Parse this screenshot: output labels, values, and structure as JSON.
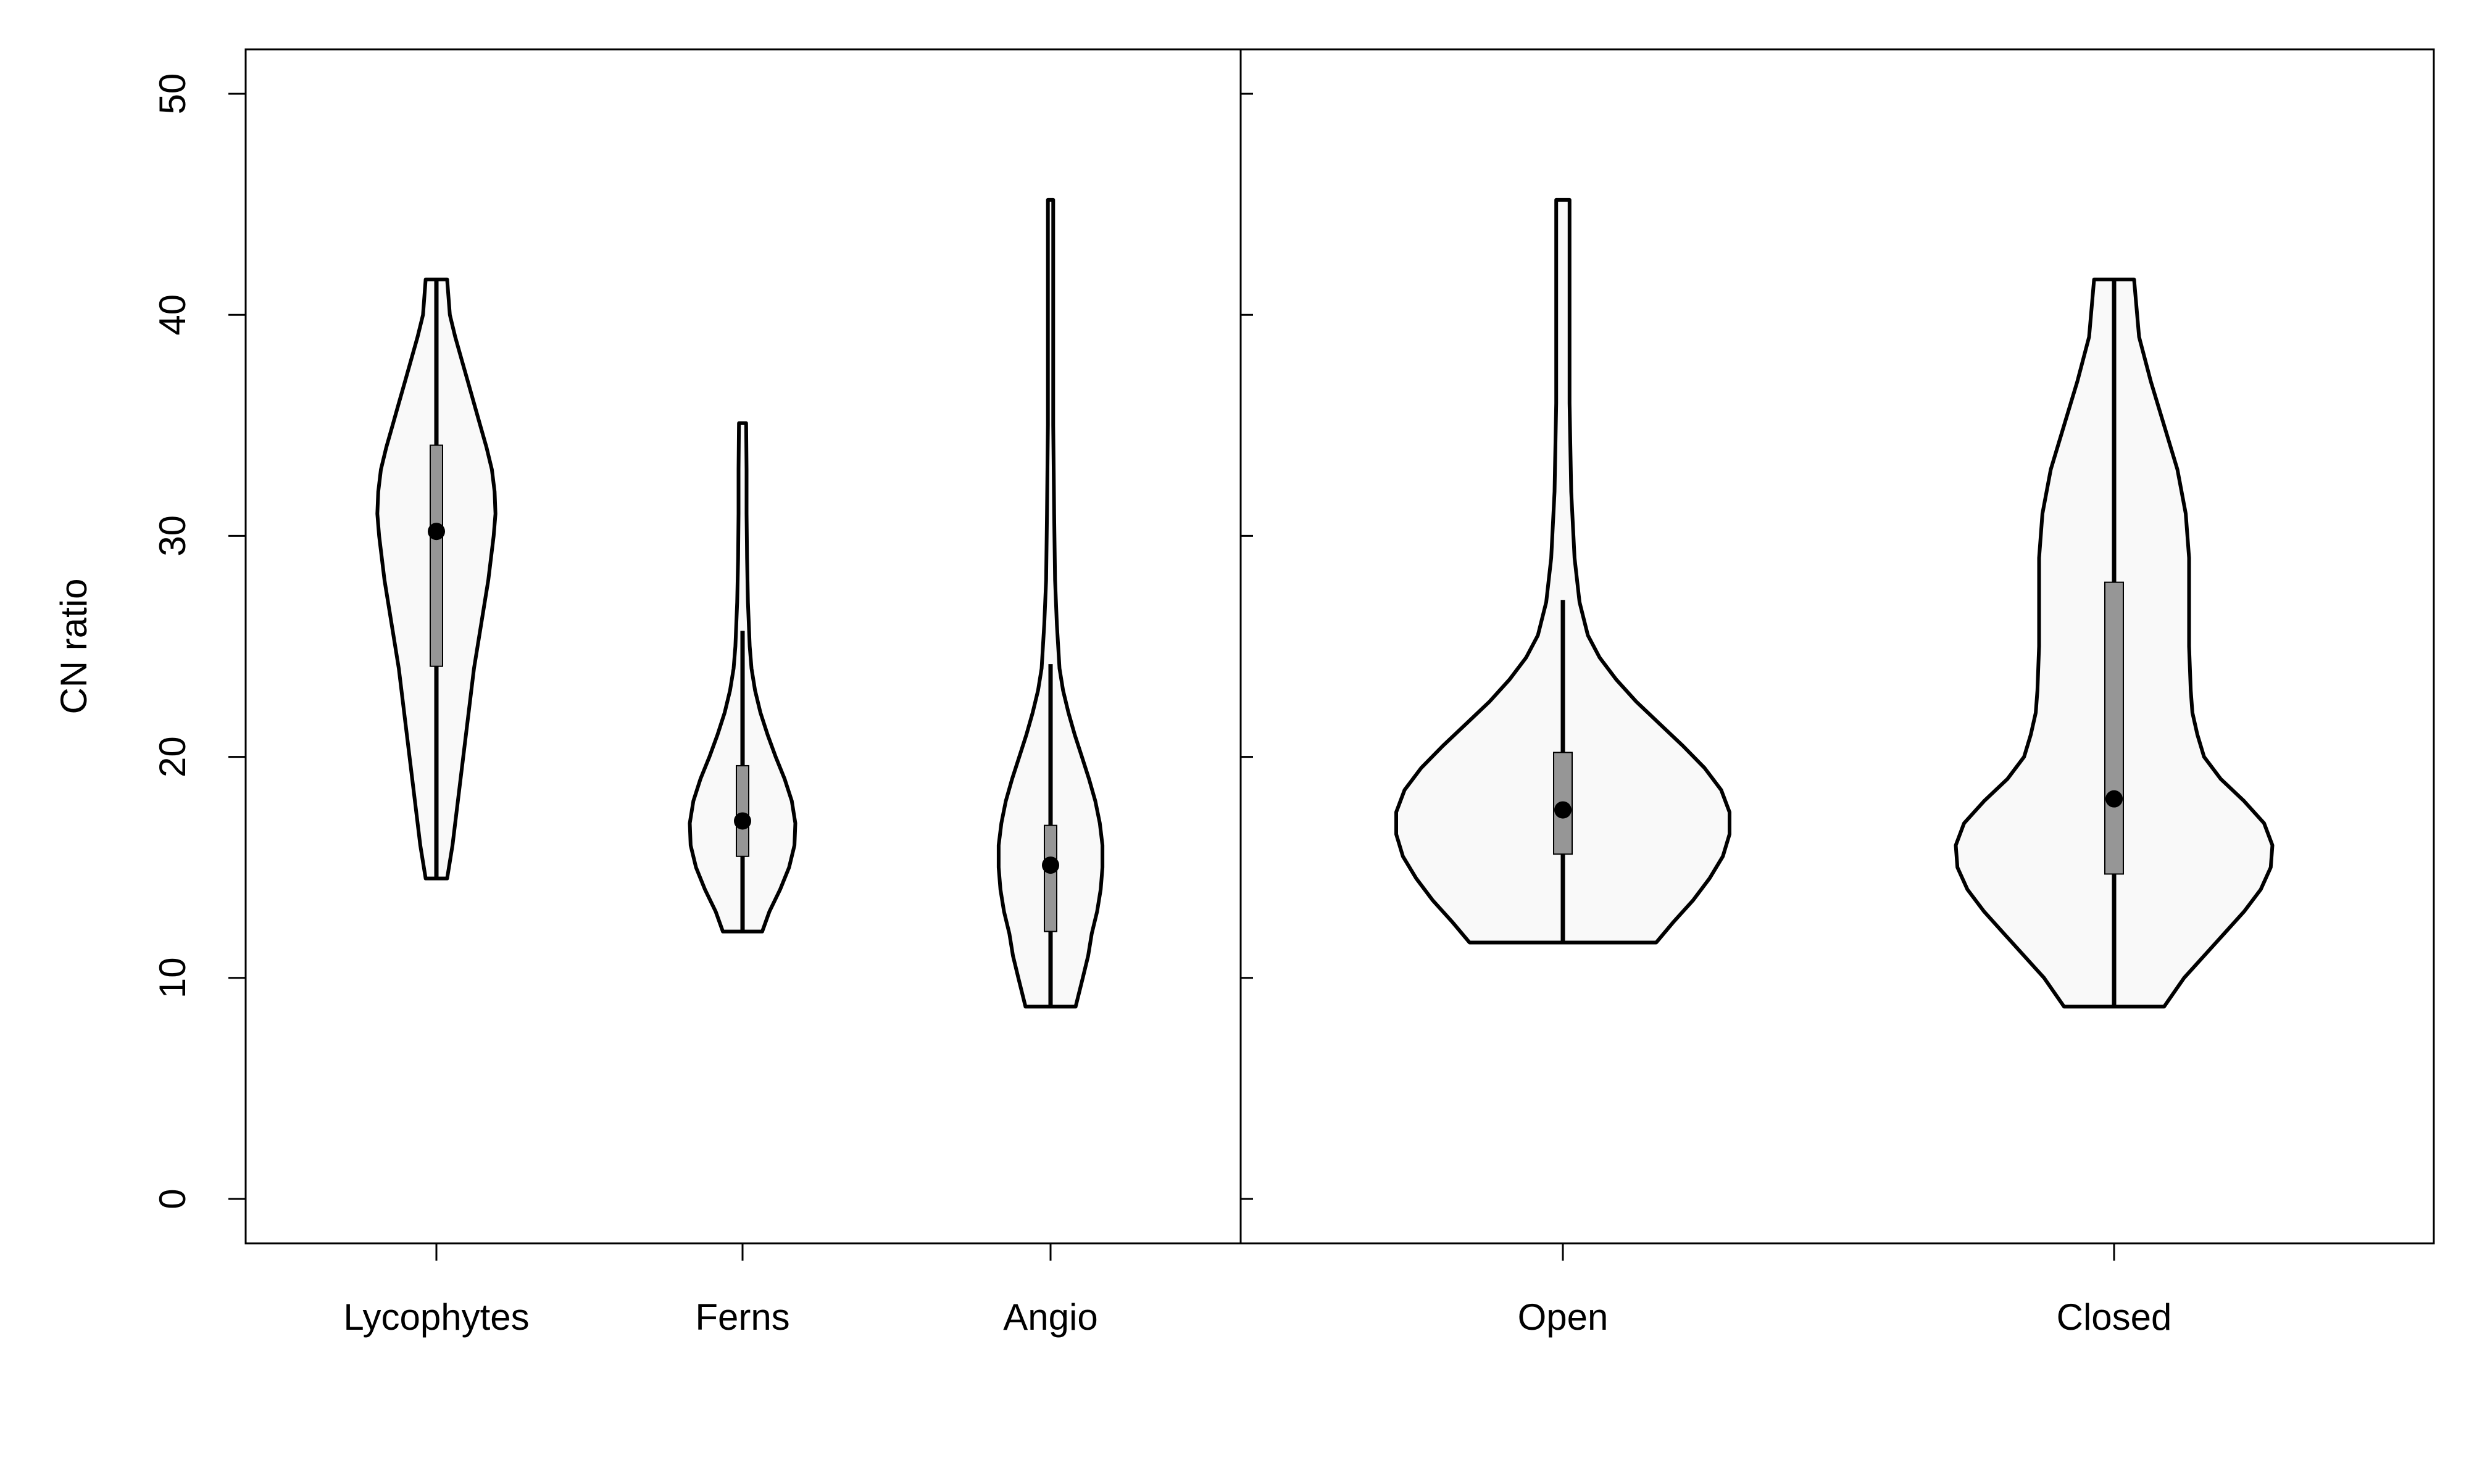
{
  "chart_data": {
    "type": "violin",
    "ylabel": "CN ratio",
    "ylim": [
      -2,
      52
    ],
    "yticks": [
      0,
      10,
      20,
      30,
      40,
      50
    ],
    "grid": false,
    "colors": {
      "violin_fill": "#f9f9f9",
      "box_fill": "#969696",
      "outline": "#000000"
    },
    "panels": [
      {
        "name": "left-panel",
        "groups": [
          {
            "label": "Lycophytes",
            "min": 14.5,
            "max": 41.6,
            "q1": 24.1,
            "median": 30.2,
            "q3": 34.1,
            "whisker_low": 14.5,
            "whisker_high": 41.6,
            "density": [
              [
                14.5,
                0.12
              ],
              [
                16,
                0.18
              ],
              [
                18,
                0.24
              ],
              [
                20,
                0.3
              ],
              [
                22,
                0.36
              ],
              [
                24,
                0.42
              ],
              [
                26,
                0.5
              ],
              [
                28,
                0.58
              ],
              [
                30,
                0.64
              ],
              [
                31,
                0.66
              ],
              [
                32,
                0.65
              ],
              [
                33,
                0.62
              ],
              [
                34,
                0.56
              ],
              [
                35,
                0.49
              ],
              [
                36,
                0.42
              ],
              [
                37,
                0.35
              ],
              [
                38,
                0.28
              ],
              [
                39,
                0.21
              ],
              [
                40,
                0.15
              ],
              [
                41.6,
                0.12
              ]
            ]
          },
          {
            "label": "Ferns",
            "min": 12.1,
            "max": 35.1,
            "q1": 15.5,
            "median": 17.1,
            "q3": 19.6,
            "whisker_low": 12.1,
            "whisker_high": 25.7,
            "density": [
              [
                12.1,
                0.22
              ],
              [
                13,
                0.3
              ],
              [
                14,
                0.42
              ],
              [
                15,
                0.52
              ],
              [
                16,
                0.58
              ],
              [
                17,
                0.59
              ],
              [
                18,
                0.55
              ],
              [
                19,
                0.47
              ],
              [
                20,
                0.37
              ],
              [
                21,
                0.28
              ],
              [
                22,
                0.2
              ],
              [
                23,
                0.14
              ],
              [
                24,
                0.1
              ],
              [
                25,
                0.08
              ],
              [
                27,
                0.06
              ],
              [
                29,
                0.05
              ],
              [
                31,
                0.045
              ],
              [
                33,
                0.045
              ],
              [
                35.1,
                0.04
              ]
            ]
          },
          {
            "label": "Angio",
            "min": 8.7,
            "max": 45.2,
            "q1": 12.1,
            "median": 15.1,
            "q3": 16.9,
            "whisker_low": 8.7,
            "whisker_high": 24.2,
            "density": [
              [
                8.7,
                0.28
              ],
              [
                10,
                0.36
              ],
              [
                11,
                0.42
              ],
              [
                12,
                0.46
              ],
              [
                13,
                0.52
              ],
              [
                14,
                0.56
              ],
              [
                15,
                0.58
              ],
              [
                16,
                0.58
              ],
              [
                17,
                0.55
              ],
              [
                18,
                0.5
              ],
              [
                19,
                0.43
              ],
              [
                20,
                0.35
              ],
              [
                21,
                0.27
              ],
              [
                22,
                0.2
              ],
              [
                23,
                0.14
              ],
              [
                24,
                0.1
              ],
              [
                26,
                0.07
              ],
              [
                28,
                0.05
              ],
              [
                31,
                0.04
              ],
              [
                35,
                0.03
              ],
              [
                40,
                0.03
              ],
              [
                45.2,
                0.03
              ]
            ]
          }
        ]
      },
      {
        "name": "right-panel",
        "groups": [
          {
            "label": "Open",
            "min": 11.6,
            "max": 45.2,
            "q1": 15.6,
            "median": 17.6,
            "q3": 20.2,
            "whisker_low": 11.6,
            "whisker_high": 27.1,
            "density": [
              [
                11.6,
                0.56
              ],
              [
                12.5,
                0.66
              ],
              [
                13.5,
                0.78
              ],
              [
                14.5,
                0.88
              ],
              [
                15.5,
                0.96
              ],
              [
                16.5,
                1.0
              ],
              [
                17.5,
                1.0
              ],
              [
                18.5,
                0.95
              ],
              [
                19.5,
                0.85
              ],
              [
                20.5,
                0.72
              ],
              [
                21.5,
                0.58
              ],
              [
                22.5,
                0.44
              ],
              [
                23.5,
                0.32
              ],
              [
                24.5,
                0.22
              ],
              [
                25.5,
                0.15
              ],
              [
                27,
                0.1
              ],
              [
                29,
                0.07
              ],
              [
                32,
                0.05
              ],
              [
                36,
                0.04
              ],
              [
                40,
                0.04
              ],
              [
                45.2,
                0.04
              ]
            ]
          },
          {
            "label": "Closed",
            "min": 8.7,
            "max": 41.6,
            "q1": 14.7,
            "median": 18.1,
            "q3": 27.9,
            "whisker_low": 8.7,
            "whisker_high": 41.6,
            "density": [
              [
                8.7,
                0.3
              ],
              [
                10,
                0.42
              ],
              [
                11,
                0.54
              ],
              [
                12,
                0.66
              ],
              [
                13,
                0.78
              ],
              [
                14,
                0.88
              ],
              [
                15,
                0.94
              ],
              [
                16,
                0.95
              ],
              [
                17,
                0.9
              ],
              [
                18,
                0.78
              ],
              [
                19,
                0.64
              ],
              [
                20,
                0.54
              ],
              [
                21,
                0.5
              ],
              [
                22,
                0.47
              ],
              [
                23,
                0.46
              ],
              [
                25,
                0.45
              ],
              [
                27,
                0.45
              ],
              [
                29,
                0.45
              ],
              [
                31,
                0.43
              ],
              [
                33,
                0.38
              ],
              [
                35,
                0.3
              ],
              [
                37,
                0.22
              ],
              [
                39,
                0.15
              ],
              [
                41.6,
                0.12
              ]
            ]
          }
        ]
      }
    ]
  }
}
